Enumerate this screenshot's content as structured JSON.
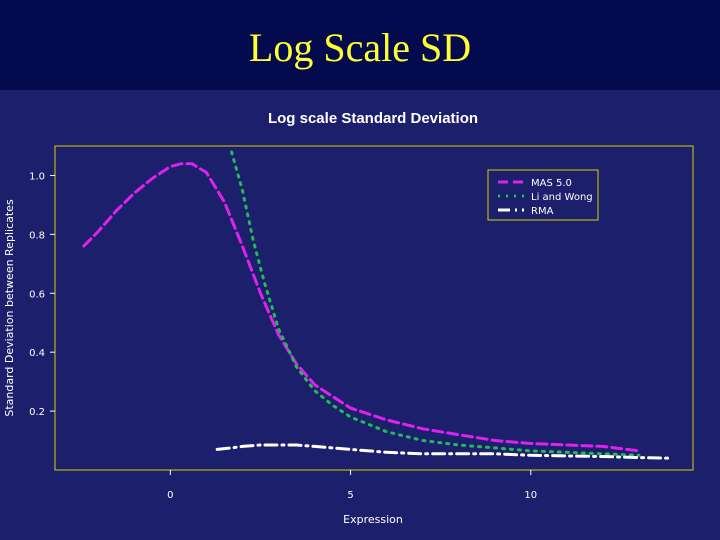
{
  "slide": {
    "title": "Log Scale SD"
  },
  "colors": {
    "background": "#1c1f6b",
    "title_band": "#040a4e",
    "title_text": "#ffff33",
    "frame": "#d9d200",
    "text": "#ffffff"
  },
  "chart_data": {
    "type": "line",
    "title": "Log scale Standard Deviation",
    "xlabel": "Expression",
    "ylabel": "Standard Deviation between Replicates",
    "xlim": [
      -3.2,
      14.5
    ],
    "ylim": [
      0.0,
      1.1
    ],
    "xticks": [
      0,
      5,
      10
    ],
    "xtick_labels": [
      "0",
      "5",
      "10"
    ],
    "yticks": [
      0.2,
      0.4,
      0.6,
      0.8,
      1.0
    ],
    "ytick_labels": [
      "0.2",
      "0.4",
      "0.6",
      "0.8",
      "1.0"
    ],
    "grid": false,
    "legend_position": "top-right",
    "series": [
      {
        "name": "MAS 5.0",
        "color": "#dd22ee",
        "dash": "dashed",
        "x": [
          -2.4,
          -2.0,
          -1.5,
          -1.0,
          -0.5,
          0.0,
          0.3,
          0.6,
          1.0,
          1.5,
          2.0,
          2.5,
          3.0,
          3.5,
          4.0,
          4.5,
          5.0,
          6.0,
          7.0,
          8.0,
          9.0,
          10.0,
          11.0,
          12.0,
          13.0
        ],
        "y": [
          0.76,
          0.81,
          0.88,
          0.94,
          0.99,
          1.03,
          1.04,
          1.04,
          1.01,
          0.91,
          0.76,
          0.6,
          0.46,
          0.36,
          0.29,
          0.25,
          0.21,
          0.17,
          0.14,
          0.12,
          0.1,
          0.09,
          0.085,
          0.08,
          0.065
        ]
      },
      {
        "name": "Li and Wong",
        "color": "#22bb55",
        "dash": "dotted",
        "x": [
          1.7,
          2.0,
          2.3,
          2.6,
          3.0,
          3.5,
          4.0,
          4.5,
          5.0,
          6.0,
          7.0,
          8.0,
          9.0,
          10.0,
          11.0,
          12.0,
          13.0
        ],
        "y": [
          1.08,
          0.95,
          0.78,
          0.64,
          0.48,
          0.35,
          0.27,
          0.22,
          0.18,
          0.13,
          0.1,
          0.085,
          0.075,
          0.065,
          0.06,
          0.055,
          0.05
        ]
      },
      {
        "name": "RMA",
        "color": "#ffffff",
        "dash": "dashdot",
        "x": [
          1.3,
          1.7,
          2.0,
          2.5,
          3.0,
          3.5,
          4.0,
          5.0,
          6.0,
          7.0,
          8.0,
          9.0,
          10.0,
          11.0,
          12.0,
          13.0,
          13.9
        ],
        "y": [
          0.07,
          0.075,
          0.08,
          0.085,
          0.085,
          0.085,
          0.08,
          0.07,
          0.06,
          0.055,
          0.055,
          0.055,
          0.05,
          0.048,
          0.046,
          0.042,
          0.04
        ]
      }
    ]
  }
}
